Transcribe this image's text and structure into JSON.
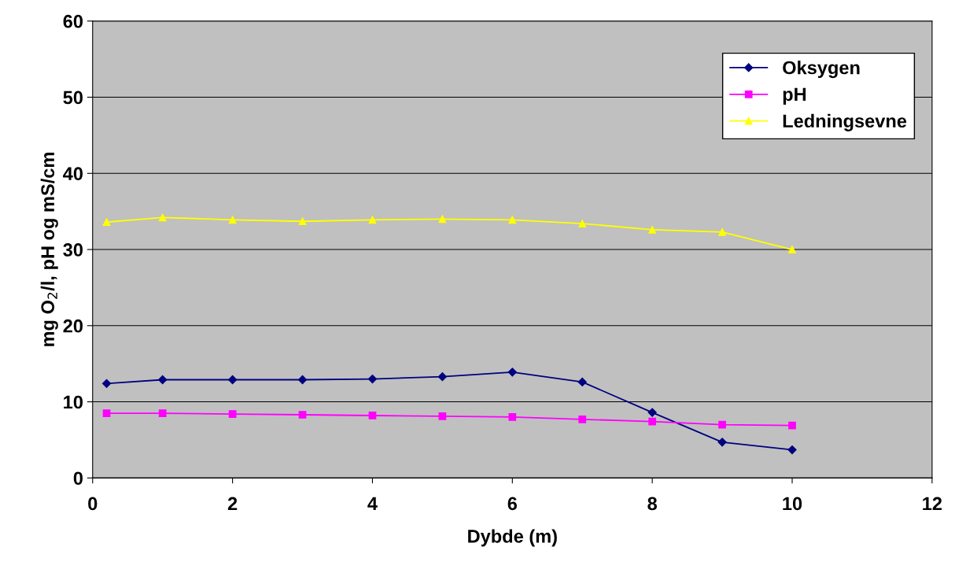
{
  "chart_data": {
    "type": "line",
    "xlabel": "Dybde (m)",
    "ylabel": "mg O$_{2}$/l, pH og mS/cm",
    "x": [
      0.2,
      1,
      2,
      3,
      4,
      5,
      6,
      7,
      8,
      9,
      10
    ],
    "xlim": [
      0,
      12
    ],
    "xticks": [
      0,
      2,
      4,
      6,
      8,
      10,
      12
    ],
    "ylim": [
      0,
      60
    ],
    "yticks": [
      0,
      10,
      20,
      30,
      40,
      50,
      60
    ],
    "grid": "y",
    "legend": "top right",
    "series": [
      {
        "name": "Oksygen",
        "color": "#000080",
        "marker": "diamond",
        "values": [
          12.4,
          12.9,
          12.9,
          12.9,
          13.0,
          13.3,
          13.9,
          12.6,
          8.6,
          4.7,
          3.7
        ]
      },
      {
        "name": "pH",
        "color": "#ff00ff",
        "marker": "square",
        "values": [
          8.5,
          8.5,
          8.4,
          8.3,
          8.2,
          8.1,
          8.0,
          7.7,
          7.4,
          7.0,
          6.9
        ]
      },
      {
        "name": "Ledningsevne",
        "color": "#ffff00",
        "marker": "triangle",
        "values": [
          33.6,
          34.2,
          33.9,
          33.7,
          33.9,
          34.0,
          33.9,
          33.4,
          32.6,
          32.3,
          30.0
        ]
      }
    ]
  }
}
